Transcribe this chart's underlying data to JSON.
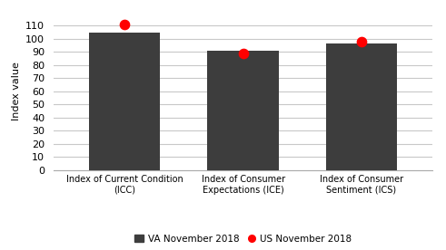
{
  "categories": [
    "Index of Current Condition\n(ICC)",
    "Index of Consumer\nExpectations (ICE)",
    "Index of Consumer\nSentiment (ICS)"
  ],
  "va_values": [
    104.5,
    91.0,
    96.5
  ],
  "us_values": [
    111.0,
    89.0,
    98.0
  ],
  "bar_color": "#3d3d3d",
  "dot_color": "#ff0000",
  "ylabel": "Index value",
  "ylim": [
    0,
    120
  ],
  "yticks": [
    0,
    10,
    20,
    30,
    40,
    50,
    60,
    70,
    80,
    90,
    100,
    110
  ],
  "legend_va": "VA November 2018",
  "legend_us": "US November 2018",
  "background_color": "#ffffff",
  "bar_width": 0.6,
  "grid_color": "#c8c8c8",
  "dot_size": 55
}
